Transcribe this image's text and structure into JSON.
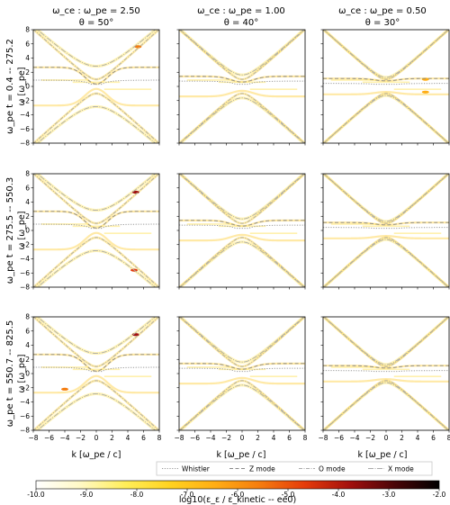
{
  "figure": {
    "column_titles": [
      {
        "line1": "ω_ce : ω_pe = 2.50",
        "line2": "θ = 50°"
      },
      {
        "line1": "ω_ce : ω_pe = 1.00",
        "line2": "θ = 40°"
      },
      {
        "line1": "ω_ce : ω_pe = 0.50",
        "line2": "θ = 30°"
      }
    ],
    "row_labels": [
      "ω_pe t = 0.4 -- 275.2",
      "ω_pe t = 275.5 -- 550.3",
      "ω_pe t = 550.7 -- 825.5"
    ],
    "ylabel": "ω [ω_pe]",
    "xlabel": "k [ω_pe / c]",
    "colorbar_label": "log10(ε_ε / ε_kinetic -- ee0)",
    "colors": {
      "whistler": "#999999",
      "z_mode": "#888888",
      "o_mode": "#aaaaaa",
      "x_mode": "#aaaaaa",
      "spectrum_low": "#fff7b0",
      "spectrum_mid": "#f0a020",
      "spectrum_high": "#000000"
    }
  },
  "chart_data": {
    "type": "heatmap",
    "layout": "3x3 grid of panels",
    "xlim": [
      -8,
      8
    ],
    "ylim": [
      -8,
      8
    ],
    "xticks": [
      "−8",
      "−6",
      "−4",
      "−2",
      "0",
      "2",
      "4",
      "6",
      "8"
    ],
    "yticks": [
      "−8",
      "−6",
      "−4",
      "−2",
      "0",
      "2",
      "4",
      "6",
      "8"
    ],
    "columns": [
      {
        "wce_over_wpe": 2.5,
        "theta_deg": 50
      },
      {
        "wce_over_wpe": 1.0,
        "theta_deg": 40
      },
      {
        "wce_over_wpe": 0.5,
        "theta_deg": 30
      }
    ],
    "legend": [
      "Whistler",
      "Z mode",
      "O mode",
      "X mode"
    ],
    "colorbar": {
      "range": [
        -10.0,
        -2.0
      ],
      "ticks": [
        "-10.0",
        "-9.0",
        "-8.0",
        "-7.0",
        "-6.0",
        "-5.0",
        "-4.0",
        "-3.0",
        "-2.0"
      ],
      "colors": [
        "#ffffff",
        "#fff9c4",
        "#ffee58",
        "#ffd21f",
        "#ffad14",
        "#f57c0e",
        "#e53b0b",
        "#a3100d",
        "#4a0508",
        "#000000"
      ]
    },
    "hot_spots": [
      {
        "panel": [
          0,
          0
        ],
        "k": 5.3,
        "omega": 5.6,
        "level": -6.0
      },
      {
        "panel": [
          1,
          0
        ],
        "k": 5.0,
        "omega": 5.4,
        "level": -3.5
      },
      {
        "panel": [
          1,
          0
        ],
        "k": 4.8,
        "omega": -5.6,
        "level": -5.0
      },
      {
        "panel": [
          2,
          0
        ],
        "k": 5.0,
        "omega": 5.5,
        "level": -3.5
      },
      {
        "panel": [
          2,
          0
        ],
        "k": -4.0,
        "omega": -2.2,
        "level": -5.5
      },
      {
        "panel": [
          0,
          2
        ],
        "k": 5.0,
        "omega": 1.0,
        "level": -6.5
      },
      {
        "panel": [
          0,
          2
        ],
        "k": 5.0,
        "omega": -0.8,
        "level": -6.5
      }
    ]
  }
}
